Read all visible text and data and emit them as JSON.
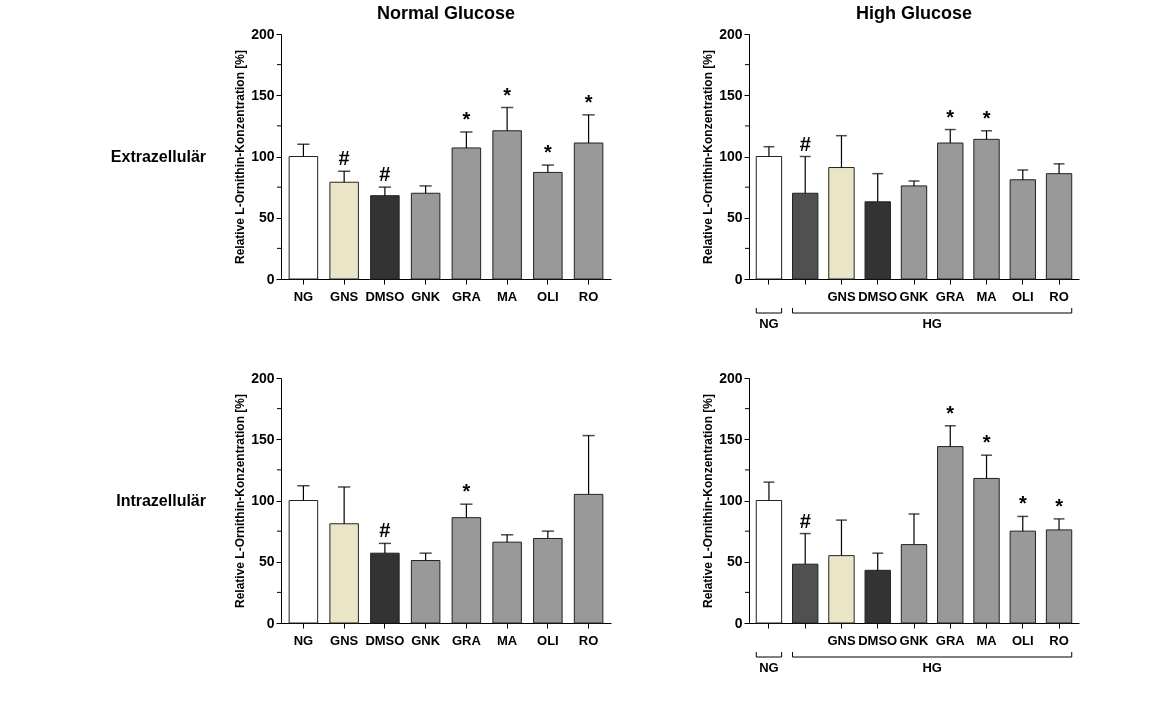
{
  "chart_data": [
    {
      "type": "bar",
      "title": "Normal Glucose",
      "ylabel": "Relative L-Ornithin-Konzentration [%]",
      "categories": [
        "NG",
        "GNS",
        "DMSO",
        "GNK",
        "GRA",
        "MA",
        "OLI",
        "RO"
      ],
      "values": [
        100,
        79,
        68,
        70,
        107,
        121,
        87,
        111
      ],
      "colors": [
        "#ffffff",
        "#ebe5c8",
        "#333333",
        "#999999",
        "#999999",
        "#999999",
        "#999999",
        "#999999"
      ],
      "errors": [
        [
          100,
          110
        ],
        [
          79,
          88
        ],
        [
          68,
          75
        ],
        [
          70,
          76
        ],
        [
          107,
          120
        ],
        [
          121,
          140
        ],
        [
          87,
          93
        ],
        [
          111,
          134
        ]
      ],
      "value_labels": [
        null,
        "#",
        "#",
        null,
        "*",
        "*",
        "*",
        "*"
      ],
      "ylim": [
        0,
        200
      ],
      "yticks": [
        0,
        {
          "value": 25,
          "label": null
        },
        50,
        {
          "value": 75,
          "label": null
        },
        100,
        {
          "value": 125,
          "label": null
        },
        150,
        {
          "value": 175,
          "label": null
        },
        200
      ],
      "annotations": [
        "Extrazellulär"
      ]
    },
    {
      "type": "bar",
      "title": "High Glucose",
      "ylabel": "Relative L-Ornithin-Konzentration [%]",
      "categories": [
        null,
        null,
        "GNS",
        "DMSO",
        "GNK",
        "GRA",
        "MA",
        "OLI",
        "RO"
      ],
      "values": [
        100,
        70,
        91,
        63,
        76,
        111,
        114,
        81,
        86
      ],
      "colors": [
        "#ffffff",
        "#505050",
        "#ebe5c8",
        "#333333",
        "#999999",
        "#999999",
        "#999999",
        "#999999",
        "#999999"
      ],
      "errors": [
        [
          100,
          108
        ],
        [
          70,
          100
        ],
        [
          91,
          117
        ],
        [
          63,
          86
        ],
        [
          76,
          80
        ],
        [
          111,
          122
        ],
        [
          114,
          121
        ],
        [
          81,
          89
        ],
        [
          86,
          94
        ]
      ],
      "value_labels": [
        null,
        "#",
        null,
        null,
        null,
        "*",
        "*",
        null,
        null
      ],
      "ylim": [
        0,
        200
      ],
      "yticks": [
        0,
        {
          "value": 25,
          "label": null
        },
        50,
        {
          "value": 75,
          "label": null
        },
        100,
        {
          "value": 125,
          "label": null
        },
        150,
        {
          "value": 175,
          "label": null
        },
        200
      ],
      "annotations": [
        "NG",
        "HG"
      ]
    },
    {
      "type": "bar",
      "ylabel": "Relative L-Ornithin-Konzentration [%]",
      "categories": [
        "NG",
        "GNS",
        "DMSO",
        "GNK",
        "GRA",
        "MA",
        "OLI",
        "RO"
      ],
      "values": [
        100,
        81,
        57,
        51,
        86,
        66,
        69,
        105
      ],
      "colors": [
        "#ffffff",
        "#ebe5c8",
        "#333333",
        "#999999",
        "#999999",
        "#999999",
        "#999999",
        "#999999"
      ],
      "errors": [
        [
          100,
          112
        ],
        [
          81,
          111
        ],
        [
          57,
          65
        ],
        [
          51,
          57
        ],
        [
          86,
          97
        ],
        [
          66,
          72
        ],
        [
          69,
          75
        ],
        [
          105,
          153
        ]
      ],
      "value_labels": [
        null,
        null,
        "#",
        null,
        "*",
        null,
        null,
        null
      ],
      "ylim": [
        0,
        200
      ],
      "yticks": [
        0,
        {
          "value": 25,
          "label": null
        },
        50,
        {
          "value": 75,
          "label": null
        },
        100,
        {
          "value": 125,
          "label": null
        },
        150,
        {
          "value": 175,
          "label": null
        },
        200
      ],
      "annotations": [
        "Intrazellulär"
      ]
    },
    {
      "type": "bar",
      "ylabel": "Relative L-Ornithin-Konzentration [%]",
      "categories": [
        null,
        null,
        "GNS",
        "DMSO",
        "GNK",
        "GRA",
        "MA",
        "OLI",
        "RO"
      ],
      "values": [
        100,
        48,
        55,
        43,
        64,
        144,
        118,
        75,
        76
      ],
      "colors": [
        "#ffffff",
        "#505050",
        "#ebe5c8",
        "#333333",
        "#999999",
        "#999999",
        "#999999",
        "#999999",
        "#999999"
      ],
      "errors": [
        [
          100,
          115
        ],
        [
          48,
          73
        ],
        [
          55,
          84
        ],
        [
          43,
          57
        ],
        [
          64,
          89
        ],
        [
          144,
          161
        ],
        [
          118,
          137
        ],
        [
          75,
          87
        ],
        [
          76,
          85
        ]
      ],
      "value_labels": [
        null,
        "#",
        null,
        null,
        null,
        "*",
        "*",
        "*",
        "*"
      ],
      "ylim": [
        0,
        200
      ],
      "yticks": [
        0,
        {
          "value": 25,
          "label": null
        },
        50,
        {
          "value": 75,
          "label": null
        },
        100,
        {
          "value": 125,
          "label": null
        },
        150,
        {
          "value": 175,
          "label": null
        },
        200
      ],
      "annotations": [
        "NG",
        "HG"
      ]
    }
  ]
}
